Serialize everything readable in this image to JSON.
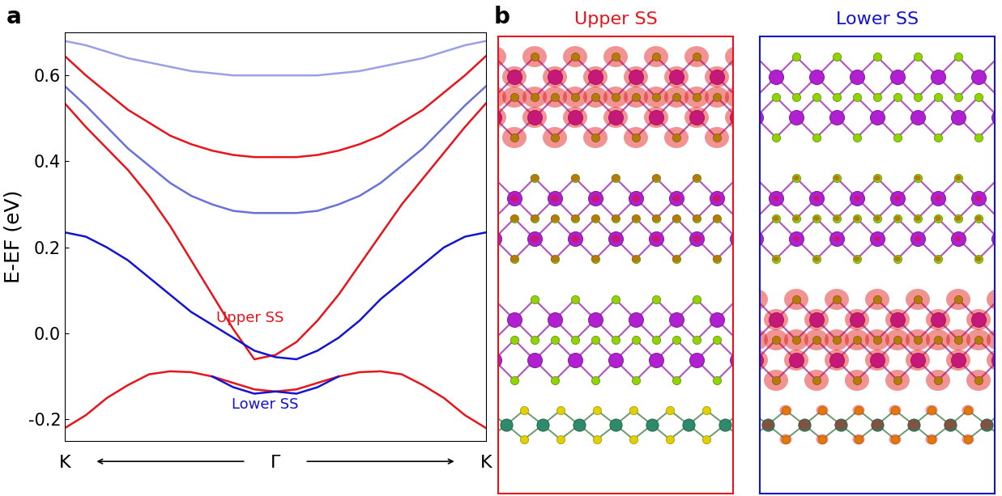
{
  "chart_data": {
    "type": "line",
    "panel_label": "a",
    "y_label": "E-EF (eV)",
    "x": [
      -1,
      -0.9,
      -0.8,
      -0.7,
      -0.6,
      -0.5,
      -0.4,
      -0.3,
      -0.2,
      -0.1,
      0,
      0.1,
      0.2,
      0.3,
      0.4,
      0.5,
      0.6,
      0.7,
      0.8,
      0.9,
      1
    ],
    "xlim": [
      -1,
      1
    ],
    "xticks": [
      {
        "value": -1,
        "label": "K"
      },
      {
        "value": 0,
        "label": "Γ"
      },
      {
        "value": 1,
        "label": "K"
      }
    ],
    "ylim": [
      -0.25,
      0.7
    ],
    "yticks": [
      -0.2,
      {
        "value": 0,
        "label": "0.0"
      },
      0.2,
      0.4,
      0.6
    ],
    "series": [
      {
        "color": "#9aa0e6",
        "values": [
          0.68,
          0.67,
          0.655,
          0.64,
          0.63,
          0.62,
          0.61,
          0.605,
          0.6,
          0.6,
          0.6,
          0.6,
          0.6,
          0.605,
          0.61,
          0.62,
          0.63,
          0.64,
          0.655,
          0.67,
          0.68
        ]
      },
      {
        "color": "#e8141c",
        "values": [
          0.645,
          0.6,
          0.56,
          0.52,
          0.49,
          0.46,
          0.44,
          0.425,
          0.415,
          0.41,
          0.41,
          0.41,
          0.415,
          0.425,
          0.44,
          0.46,
          0.49,
          0.52,
          0.56,
          0.6,
          0.645
        ]
      },
      {
        "color": "#6a70dc",
        "values": [
          0.575,
          0.53,
          0.48,
          0.43,
          0.39,
          0.35,
          0.32,
          0.3,
          0.285,
          0.28,
          0.28,
          0.28,
          0.285,
          0.3,
          0.32,
          0.35,
          0.39,
          0.43,
          0.48,
          0.53,
          0.575
        ]
      },
      {
        "color": "#e8141c",
        "values": [
          0.535,
          0.48,
          0.43,
          0.38,
          0.32,
          0.25,
          0.17,
          0.09,
          0.01,
          -0.06,
          -0.05,
          -0.02,
          0.03,
          0.09,
          0.16,
          0.23,
          0.3,
          0.36,
          0.42,
          0.48,
          0.535
        ]
      },
      {
        "color": "#1414d0",
        "values": [
          0.235,
          0.225,
          0.2,
          0.17,
          0.13,
          0.09,
          0.05,
          0.02,
          -0.01,
          -0.04,
          -0.055,
          -0.06,
          -0.04,
          -0.01,
          0.03,
          0.08,
          0.12,
          0.16,
          0.2,
          0.225,
          0.235
        ]
      },
      {
        "color": "#e8141c",
        "values": [
          -0.22,
          -0.19,
          -0.15,
          -0.12,
          -0.095,
          -0.088,
          -0.09,
          -0.1,
          -0.115,
          -0.13,
          -0.135,
          -0.13,
          -0.115,
          -0.1,
          -0.09,
          -0.088,
          -0.095,
          -0.12,
          -0.15,
          -0.19,
          -0.22
        ]
      },
      {
        "color": "#1414d0",
        "values": [
          null,
          null,
          null,
          null,
          null,
          null,
          null,
          -0.1,
          -0.125,
          -0.14,
          -0.135,
          -0.14,
          -0.125,
          -0.1,
          null,
          null,
          null,
          null,
          null,
          null,
          null
        ]
      }
    ],
    "annotations": [
      {
        "text": "Upper SS",
        "x": -0.12,
        "y": 0.035,
        "color": "#e8141c"
      },
      {
        "text": "Lower SS",
        "x": -0.05,
        "y": -0.165,
        "color": "#1414d0"
      }
    ]
  },
  "diagram": {
    "label": "b",
    "panels": [
      {
        "title": "Upper SS",
        "color": "#e8141c"
      },
      {
        "title": "Lower SS",
        "color": "#1414d0"
      }
    ]
  }
}
